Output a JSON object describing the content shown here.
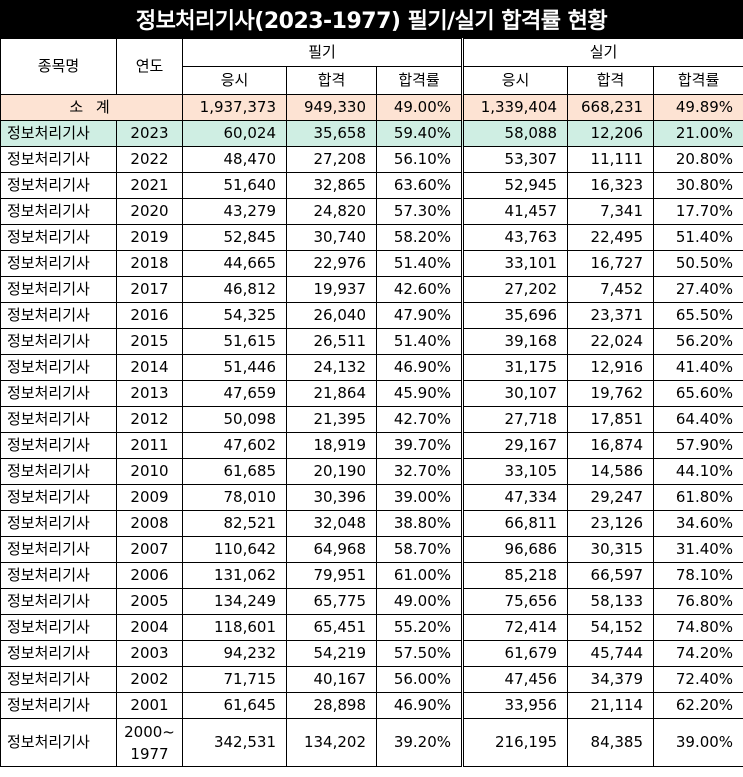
{
  "title": "정보처리기사(2023-1977) 필기/실기 합격률 현황",
  "headers": {
    "name": "종목명",
    "year": "연도",
    "written": "필기",
    "practical": "실기",
    "applicants": "응시",
    "passed": "합격",
    "pass_rate": "합격률"
  },
  "subtotal": {
    "label": "소 계",
    "written_applicants": "1,937,373",
    "written_passed": "949,330",
    "written_rate": "49.00%",
    "practical_applicants": "1,339,404",
    "practical_passed": "668,231",
    "practical_rate": "49.89%"
  },
  "rows": [
    [
      "정보처리기사",
      "2023",
      "60,024",
      "35,658",
      "59.40%",
      "58,088",
      "12,206",
      "21.00%"
    ],
    [
      "정보처리기사",
      "2022",
      "48,470",
      "27,208",
      "56.10%",
      "53,307",
      "11,111",
      "20.80%"
    ],
    [
      "정보처리기사",
      "2021",
      "51,640",
      "32,865",
      "63.60%",
      "52,945",
      "16,323",
      "30.80%"
    ],
    [
      "정보처리기사",
      "2020",
      "43,279",
      "24,820",
      "57.30%",
      "41,457",
      "7,341",
      "17.70%"
    ],
    [
      "정보처리기사",
      "2019",
      "52,845",
      "30,740",
      "58.20%",
      "43,763",
      "22,495",
      "51.40%"
    ],
    [
      "정보처리기사",
      "2018",
      "44,665",
      "22,976",
      "51.40%",
      "33,101",
      "16,727",
      "50.50%"
    ],
    [
      "정보처리기사",
      "2017",
      "46,812",
      "19,937",
      "42.60%",
      "27,202",
      "7,452",
      "27.40%"
    ],
    [
      "정보처리기사",
      "2016",
      "54,325",
      "26,040",
      "47.90%",
      "35,696",
      "23,371",
      "65.50%"
    ],
    [
      "정보처리기사",
      "2015",
      "51,615",
      "26,511",
      "51.40%",
      "39,168",
      "22,024",
      "56.20%"
    ],
    [
      "정보처리기사",
      "2014",
      "51,446",
      "24,132",
      "46.90%",
      "31,175",
      "12,916",
      "41.40%"
    ],
    [
      "정보처리기사",
      "2013",
      "47,659",
      "21,864",
      "45.90%",
      "30,107",
      "19,762",
      "65.60%"
    ],
    [
      "정보처리기사",
      "2012",
      "50,098",
      "21,395",
      "42.70%",
      "27,718",
      "17,851",
      "64.40%"
    ],
    [
      "정보처리기사",
      "2011",
      "47,602",
      "18,919",
      "39.70%",
      "29,167",
      "16,874",
      "57.90%"
    ],
    [
      "정보처리기사",
      "2010",
      "61,685",
      "20,190",
      "32.70%",
      "33,105",
      "14,586",
      "44.10%"
    ],
    [
      "정보처리기사",
      "2009",
      "78,010",
      "30,396",
      "39.00%",
      "47,334",
      "29,247",
      "61.80%"
    ],
    [
      "정보처리기사",
      "2008",
      "82,521",
      "32,048",
      "38.80%",
      "66,811",
      "23,126",
      "34.60%"
    ],
    [
      "정보처리기사",
      "2007",
      "110,642",
      "64,968",
      "58.70%",
      "96,686",
      "30,315",
      "31.40%"
    ],
    [
      "정보처리기사",
      "2006",
      "131,062",
      "79,951",
      "61.00%",
      "85,218",
      "66,597",
      "78.10%"
    ],
    [
      "정보처리기사",
      "2005",
      "134,249",
      "65,775",
      "49.00%",
      "75,656",
      "58,133",
      "76.80%"
    ],
    [
      "정보처리기사",
      "2004",
      "118,601",
      "65,451",
      "55.20%",
      "72,414",
      "54,152",
      "74.80%"
    ],
    [
      "정보처리기사",
      "2003",
      "94,232",
      "54,219",
      "57.50%",
      "61,679",
      "45,744",
      "74.20%"
    ],
    [
      "정보처리기사",
      "2002",
      "71,715",
      "40,167",
      "56.00%",
      "47,456",
      "34,379",
      "72.40%"
    ],
    [
      "정보처리기사",
      "2001",
      "61,645",
      "28,898",
      "46.90%",
      "33,956",
      "21,114",
      "62.20%"
    ]
  ],
  "last_row": {
    "name": "정보처리기사",
    "year_line1": "2000~",
    "year_line2": "1977",
    "written_applicants": "342,531",
    "written_passed": "134,202",
    "written_rate": "39.20%",
    "practical_applicants": "216,195",
    "practical_passed": "84,385",
    "practical_rate": "39.00%"
  },
  "colors": {
    "subtotal_bg": "#fde3d3",
    "highlight_bg": "#cfeee3",
    "title_bg": "#000000"
  }
}
